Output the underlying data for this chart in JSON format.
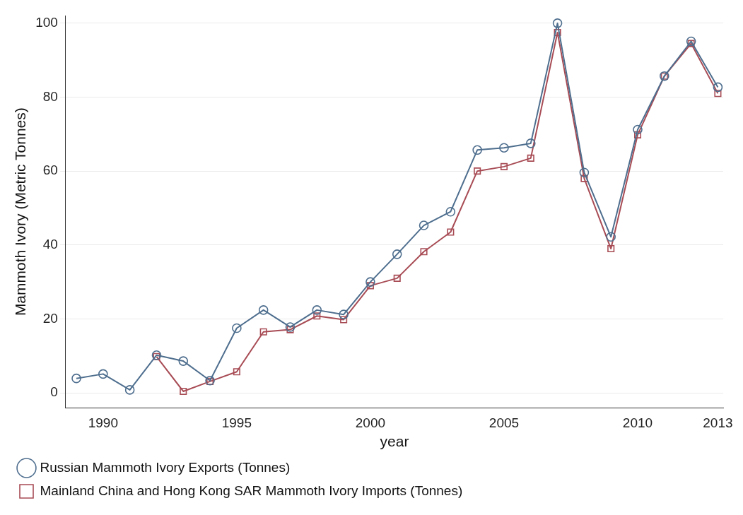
{
  "chart_data": {
    "type": "line",
    "xlabel": "year",
    "ylabel": "Mammoth Ivory (Metric Tonnes)",
    "xlim": [
      1988.6,
      2013.2
    ],
    "xticks": [
      1990,
      1995,
      2000,
      2005,
      2010,
      2013
    ],
    "ylim": [
      -4,
      102
    ],
    "yticks": [
      0,
      20,
      40,
      60,
      80,
      100
    ],
    "grid": "y",
    "legend": "bottom",
    "line_style": "solid",
    "series": [
      {
        "name": "Russian Mammoth Ivory Exports (Tonnes)",
        "color": "#4e6e8e",
        "marker": "circle",
        "x": [
          1989,
          1990,
          1991,
          1992,
          1993,
          1994,
          1995,
          1996,
          1997,
          1998,
          1999,
          2000,
          2001,
          2002,
          2003,
          2004,
          2005,
          2006,
          2007,
          2008,
          2009,
          2010,
          2011,
          2012,
          2013
        ],
        "values": [
          3.9,
          5.1,
          0.8,
          10.2,
          8.6,
          3.3,
          17.5,
          22.4,
          17.8,
          22.4,
          21.2,
          30,
          37.5,
          45.3,
          49,
          65.7,
          66.3,
          67.5,
          100,
          59.6,
          42.2,
          71.2,
          85.7,
          95.1,
          82.7
        ]
      },
      {
        "name": "Mainland China and Hong Kong SAR Mammoth Ivory Imports (Tonnes)",
        "color": "#a84c55",
        "marker": "square",
        "x": [
          1992,
          1993,
          1994,
          1995,
          1996,
          1997,
          1998,
          1999,
          2000,
          2001,
          2002,
          2003,
          2004,
          2005,
          2006,
          2007,
          2008,
          2009,
          2010,
          2011,
          2012,
          2013
        ],
        "values": [
          9.8,
          0.4,
          3.1,
          5.7,
          16.5,
          17.1,
          20.8,
          19.8,
          29,
          31,
          38.2,
          43.5,
          60,
          61.2,
          63.5,
          97.5,
          58,
          39,
          69.8,
          85.7,
          94.5,
          81
        ]
      }
    ]
  }
}
